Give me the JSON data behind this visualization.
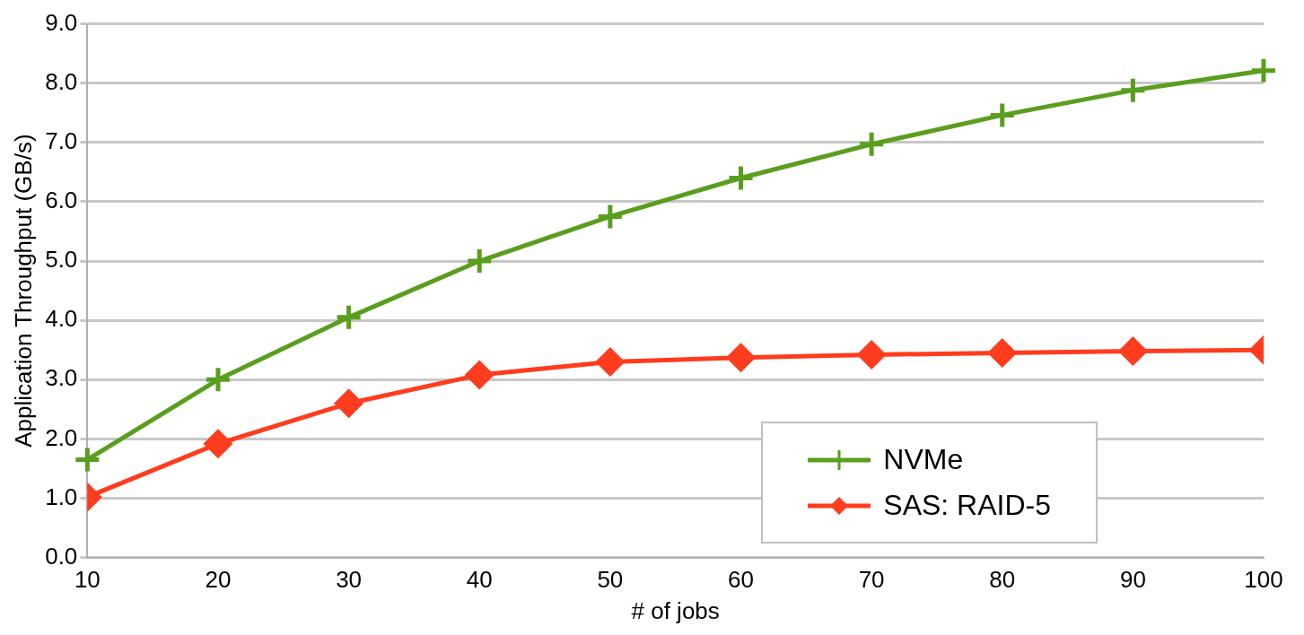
{
  "chart_data": {
    "type": "line",
    "xlabel": "# of jobs",
    "ylabel": "Application Throughput (GB/s)",
    "x": [
      10,
      20,
      30,
      40,
      50,
      60,
      70,
      80,
      90,
      100
    ],
    "xlim": [
      10,
      100
    ],
    "xticks": [
      10,
      20,
      30,
      40,
      50,
      60,
      70,
      80,
      90,
      100
    ],
    "ylim": [
      0,
      9
    ],
    "yticks": [
      {
        "value": 0,
        "label": "0.0"
      },
      {
        "value": 1,
        "label": "1.0"
      },
      {
        "value": 2,
        "label": "2.0"
      },
      {
        "value": 3,
        "label": "3.0"
      },
      {
        "value": 4,
        "label": "4.0"
      },
      {
        "value": 5,
        "label": "5.0"
      },
      {
        "value": 6,
        "label": "6.0"
      },
      {
        "value": 7,
        "label": "7.0"
      },
      {
        "value": 8,
        "label": "8.0"
      },
      {
        "value": 9,
        "label": "9.0"
      }
    ],
    "grid": "y",
    "legend": "bottom right",
    "line_style": "solid",
    "series": [
      {
        "name": "NVMe",
        "color": "#5a9e1e",
        "marker": "cross",
        "values": [
          1.65,
          3.0,
          4.05,
          5.0,
          5.75,
          6.4,
          6.97,
          7.46,
          7.88,
          8.21
        ]
      },
      {
        "name": "SAS: RAID-5",
        "color": "#ff3c1e",
        "marker": "diamond",
        "values": [
          1.02,
          1.92,
          2.6,
          3.08,
          3.3,
          3.37,
          3.42,
          3.45,
          3.48,
          3.5
        ]
      }
    ]
  }
}
